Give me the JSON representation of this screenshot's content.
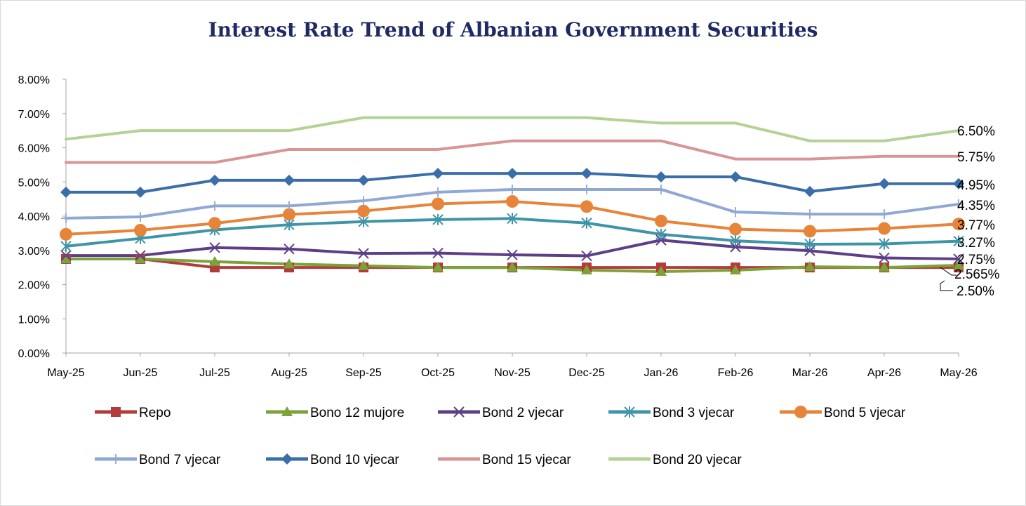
{
  "chart_data": {
    "type": "line",
    "title": "Interest Rate Trend of Albanian Government Securities",
    "xlabel": "",
    "ylabel": "",
    "ylim": [
      0,
      8
    ],
    "y_ticks": [
      "0.00%",
      "1.00%",
      "2.00%",
      "3.00%",
      "4.00%",
      "5.00%",
      "6.00%",
      "7.00%",
      "8.00%"
    ],
    "x_axis_labels": [
      "May-25",
      "Jun-25",
      "Jul-25",
      "Aug-25",
      "Sep-25",
      "Oct-25",
      "Nov-25",
      "Dec-25",
      "Jan-26",
      "Feb-26",
      "Mar-26",
      "Apr-26",
      "May-26"
    ],
    "grid": false,
    "legend_position": "bottom",
    "series": [
      {
        "name": "Repo",
        "color": "#b33b3b",
        "marker": "square",
        "values": [
          2.75,
          2.75,
          2.5,
          2.5,
          2.5,
          2.5,
          2.5,
          2.5,
          2.5,
          2.5,
          2.5,
          2.5,
          2.5
        ],
        "end_label": "2.50%"
      },
      {
        "name": "Bono 12 mujore",
        "color": "#7aa33a",
        "marker": "triangle",
        "values": [
          2.75,
          2.75,
          2.67,
          2.6,
          2.55,
          2.5,
          2.5,
          2.42,
          2.38,
          2.42,
          2.52,
          2.5,
          2.565
        ],
        "end_label": "2.565%"
      },
      {
        "name": "Bond 2 vjecar",
        "color": "#5e3f87",
        "marker": "x",
        "values": [
          2.85,
          2.85,
          3.08,
          3.04,
          2.91,
          2.92,
          2.87,
          2.84,
          3.3,
          3.1,
          2.99,
          2.78,
          2.75
        ],
        "end_label": "2.75%"
      },
      {
        "name": "Bond 3 vjecar",
        "color": "#3f95a8",
        "marker": "asterisk",
        "values": [
          3.12,
          3.35,
          3.6,
          3.75,
          3.84,
          3.9,
          3.93,
          3.8,
          3.47,
          3.28,
          3.18,
          3.19,
          3.27
        ],
        "end_label": "3.27%"
      },
      {
        "name": "Bond 5 vjecar",
        "color": "#e6843a",
        "marker": "circle",
        "values": [
          3.47,
          3.59,
          3.79,
          4.05,
          4.15,
          4.36,
          4.43,
          4.28,
          3.86,
          3.62,
          3.56,
          3.64,
          3.77
        ],
        "end_label": "3.77%"
      },
      {
        "name": "Bond 7 vjecar",
        "color": "#8fa8d4",
        "marker": "plus",
        "values": [
          3.94,
          3.98,
          4.3,
          4.3,
          4.45,
          4.7,
          4.78,
          4.78,
          4.78,
          4.12,
          4.06,
          4.06,
          4.35
        ],
        "end_label": "4.35%"
      },
      {
        "name": "Bond 10 vjecar",
        "color": "#3a6ea8",
        "marker": "diamond",
        "values": [
          4.7,
          4.7,
          5.05,
          5.05,
          5.05,
          5.25,
          5.25,
          5.25,
          5.15,
          5.15,
          4.72,
          4.95,
          4.95
        ],
        "end_label": "4.95%"
      },
      {
        "name": "Bond 15 vjecar",
        "color": "#d79595",
        "marker": "none",
        "values": [
          5.57,
          5.57,
          5.57,
          5.95,
          5.95,
          5.95,
          6.2,
          6.2,
          6.2,
          5.67,
          5.67,
          5.75,
          5.75
        ],
        "end_label": "5.75%"
      },
      {
        "name": "Bond 20 vjecar",
        "color": "#b4d294",
        "marker": "none",
        "values": [
          6.25,
          6.5,
          6.5,
          6.5,
          6.88,
          6.88,
          6.88,
          6.88,
          6.72,
          6.72,
          6.2,
          6.2,
          6.5
        ],
        "end_label": "6.50%"
      }
    ]
  }
}
